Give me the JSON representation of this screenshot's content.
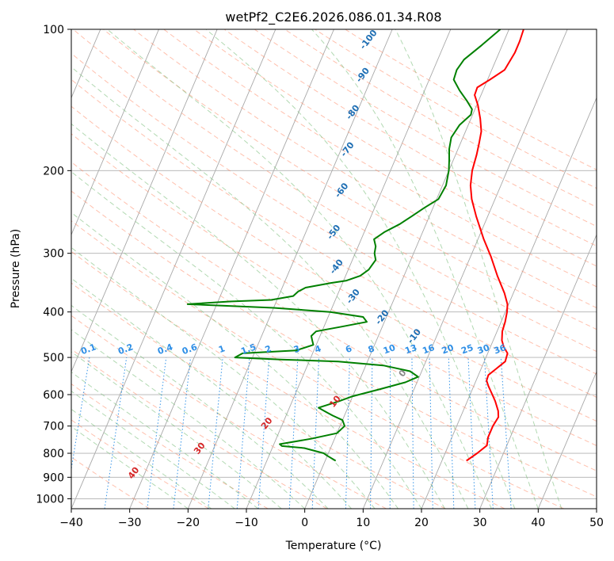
{
  "chart_data": {
    "type": "line",
    "title": "wetPf2_C2E6.2026.086.01.34.R08",
    "xlabel": "Temperature (°C)",
    "ylabel": "Pressure (hPa)",
    "xlim": [
      -40,
      50
    ],
    "ylim": [
      1050,
      100
    ],
    "y_scale": "log",
    "grid": true,
    "x_ticks": [
      -40,
      -30,
      -20,
      -10,
      0,
      10,
      20,
      30,
      40,
      50
    ],
    "y_ticks": [
      1000,
      900,
      800,
      700,
      600,
      500,
      400,
      300,
      200,
      100
    ],
    "colors": {
      "temperature": "#ff0000",
      "dewpoint": "#008000",
      "isotherms": "#999999",
      "dry_adiabats": "#ff8c69",
      "moist_adiabats": "#7fbf7f",
      "mixing_ratio": "#1e88e5",
      "dry_label": "#1f6fb4",
      "moist_label": "#d62728"
    },
    "dry_adiabat_labels": [
      "-100",
      "-90",
      "-80",
      "-70",
      "-60",
      "-50",
      "-40",
      "-30",
      "-20",
      "-10",
      "0",
      "10",
      "20",
      "30",
      "40"
    ],
    "mixing_ratio_labels": [
      "0.1",
      "0.2",
      "0.4",
      "0.6",
      "1",
      "1.5",
      "2",
      "3",
      "4",
      "6",
      "8",
      "10",
      "13",
      "16",
      "20",
      "25",
      "30",
      "36"
    ],
    "series": [
      {
        "name": "",
        "values": [
          [
            24.2,
            830
          ],
          [
            25.5,
            800
          ],
          [
            26.6,
            770
          ],
          [
            26.2,
            740
          ],
          [
            26.2,
            700
          ],
          [
            26.5,
            670
          ],
          [
            26.0,
            650
          ],
          [
            24.8,
            620
          ],
          [
            23.8,
            600
          ],
          [
            22.5,
            575
          ],
          [
            21.8,
            560
          ],
          [
            21.7,
            545
          ],
          [
            22.5,
            530
          ],
          [
            23.6,
            510
          ],
          [
            23.4,
            490
          ],
          [
            22.3,
            475
          ],
          [
            21.5,
            460
          ],
          [
            20.9,
            440
          ],
          [
            20.7,
            420
          ],
          [
            20.3,
            400
          ],
          [
            19.8,
            385
          ],
          [
            18.5,
            365
          ],
          [
            16.0,
            335
          ],
          [
            13.5,
            305
          ],
          [
            11.0,
            280
          ],
          [
            8.0,
            250
          ],
          [
            6.0,
            230
          ],
          [
            4.8,
            215
          ],
          [
            4.0,
            200
          ],
          [
            3.6,
            185
          ],
          [
            3.2,
            175
          ],
          [
            2.7,
            165
          ],
          [
            1.6,
            155
          ],
          [
            0.2,
            145
          ],
          [
            -1.1,
            138
          ],
          [
            -1.2,
            133
          ],
          [
            0.4,
            128
          ],
          [
            2.2,
            122
          ],
          [
            2.7,
            112
          ],
          [
            2.7,
            106
          ],
          [
            2.5,
            100
          ]
        ]
      },
      {
        "name": "",
        "values": [
          [
            1.8,
            830
          ],
          [
            0.0,
            810
          ],
          [
            -0.8,
            800
          ],
          [
            -4.5,
            780
          ],
          [
            -8.5,
            772
          ],
          [
            -9.0,
            765
          ],
          [
            -4.0,
            745
          ],
          [
            0.0,
            725
          ],
          [
            0.8,
            700
          ],
          [
            0.0,
            680
          ],
          [
            -2.0,
            665
          ],
          [
            -3.2,
            655
          ],
          [
            -5.0,
            640
          ],
          [
            -2.0,
            620
          ],
          [
            0.0,
            605
          ],
          [
            4.0,
            585
          ],
          [
            8.0,
            565
          ],
          [
            9.8,
            550
          ],
          [
            8.0,
            535
          ],
          [
            3.0,
            520
          ],
          [
            -5.0,
            510
          ],
          [
            -15.0,
            505
          ],
          [
            -23.0,
            500
          ],
          [
            -22.0,
            490
          ],
          [
            -13.0,
            483
          ],
          [
            -10.5,
            470
          ],
          [
            -11.0,
            460
          ],
          [
            -11.5,
            450
          ],
          [
            -11.0,
            440
          ],
          [
            -7.0,
            430
          ],
          [
            -3.0,
            420
          ],
          [
            -4.0,
            410
          ],
          [
            -10.0,
            400
          ],
          [
            -20.0,
            392
          ],
          [
            -35.0,
            385
          ],
          [
            -28.0,
            380
          ],
          [
            -21.0,
            377
          ],
          [
            -17.5,
            370
          ],
          [
            -17.0,
            362
          ],
          [
            -16.0,
            355
          ],
          [
            -12.0,
            347
          ],
          [
            -9.5,
            343
          ],
          [
            -7.5,
            335
          ],
          [
            -6.5,
            325
          ],
          [
            -6.0,
            310
          ],
          [
            -6.7,
            300
          ],
          [
            -7.0,
            290
          ],
          [
            -7.8,
            280
          ],
          [
            -6.5,
            270
          ],
          [
            -4.5,
            260
          ],
          [
            -3.0,
            250
          ],
          [
            -1.5,
            240
          ],
          [
            0.3,
            230
          ],
          [
            0.6,
            215
          ],
          [
            0.0,
            200
          ],
          [
            -0.7,
            190
          ],
          [
            -1.5,
            180
          ],
          [
            -2.0,
            170
          ],
          [
            -1.5,
            160
          ],
          [
            -0.3,
            152
          ],
          [
            -0.5,
            148
          ],
          [
            -2.0,
            142
          ],
          [
            -4.0,
            135
          ],
          [
            -5.8,
            128
          ],
          [
            -6.0,
            122
          ],
          [
            -5.5,
            116
          ],
          [
            -3.5,
            108
          ],
          [
            -1.5,
            100
          ]
        ]
      }
    ]
  }
}
